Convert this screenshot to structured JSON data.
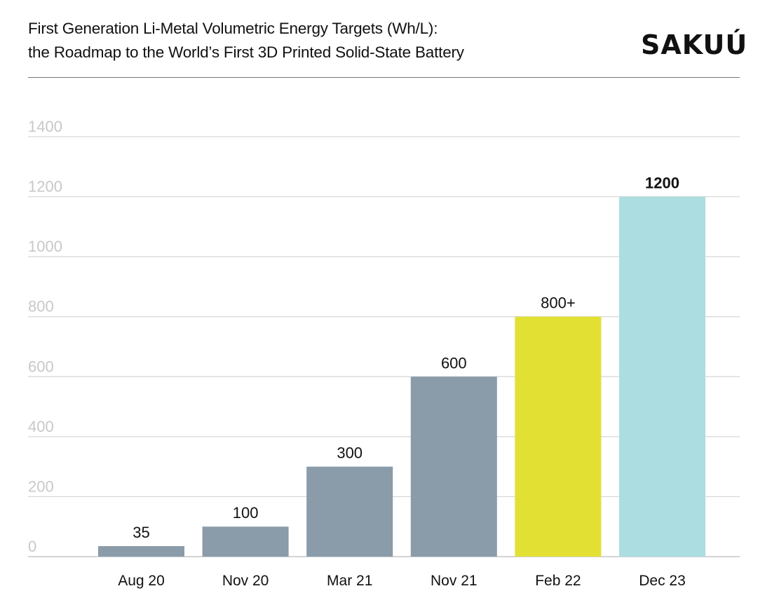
{
  "header": {
    "title_line1": "First Generation Li-Metal Volumetric Energy Targets (Wh/L):",
    "title_line2": "the Roadmap to the World’s First 3D Printed Solid-State Battery",
    "logo_text": "SAKUÚ"
  },
  "chart_data": {
    "type": "bar",
    "title": "First Generation Li-Metal Volumetric Energy Targets (Wh/L): the Roadmap to the World’s First 3D Printed Solid-State Battery",
    "categories": [
      "Aug 20",
      "Nov 20",
      "Mar 21",
      "Nov 21",
      "Feb 22",
      "Dec 23"
    ],
    "values": [
      35,
      100,
      300,
      600,
      800,
      1200
    ],
    "data_labels": [
      "35",
      "100",
      "300",
      "600",
      "800+",
      "1200"
    ],
    "bar_colors": [
      "#8a9ba9",
      "#8a9ba9",
      "#8a9ba9",
      "#8a9ba9",
      "#e2e033",
      "#acdde1"
    ],
    "ylim": [
      0,
      1400
    ],
    "yticks": [
      0,
      200,
      400,
      600,
      800,
      1000,
      1200,
      1400
    ],
    "grid": true,
    "xlabel": "",
    "ylabel": ""
  }
}
